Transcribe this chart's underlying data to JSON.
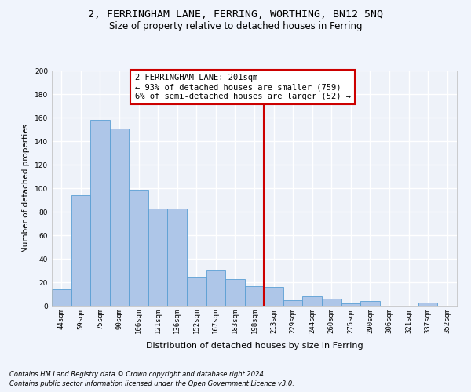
{
  "title": "2, FERRINGHAM LANE, FERRING, WORTHING, BN12 5NQ",
  "subtitle": "Size of property relative to detached houses in Ferring",
  "xlabel": "Distribution of detached houses by size in Ferring",
  "ylabel": "Number of detached properties",
  "bar_color": "#aec6e8",
  "bar_edge_color": "#5a9fd4",
  "categories": [
    "44sqm",
    "59sqm",
    "75sqm",
    "90sqm",
    "106sqm",
    "121sqm",
    "136sqm",
    "152sqm",
    "167sqm",
    "183sqm",
    "198sqm",
    "213sqm",
    "229sqm",
    "244sqm",
    "260sqm",
    "275sqm",
    "290sqm",
    "306sqm",
    "321sqm",
    "337sqm",
    "352sqm"
  ],
  "values": [
    14,
    94,
    158,
    151,
    99,
    83,
    83,
    25,
    30,
    23,
    17,
    16,
    5,
    8,
    6,
    2,
    4,
    0,
    0,
    3,
    0
  ],
  "vline_x": 10.5,
  "annotation_text": "2 FERRINGHAM LANE: 201sqm\n← 93% of detached houses are smaller (759)\n6% of semi-detached houses are larger (52) →",
  "annotation_box_color": "#ffffff",
  "annotation_box_edge": "#cc0000",
  "vline_color": "#cc0000",
  "ylim": [
    0,
    200
  ],
  "yticks": [
    0,
    20,
    40,
    60,
    80,
    100,
    120,
    140,
    160,
    180,
    200
  ],
  "footer1": "Contains HM Land Registry data © Crown copyright and database right 2024.",
  "footer2": "Contains public sector information licensed under the Open Government Licence v3.0.",
  "bg_color": "#eef2f9",
  "grid_color": "#ffffff",
  "title_fontsize": 9.5,
  "subtitle_fontsize": 8.5,
  "annotation_fontsize": 7.5,
  "tick_fontsize": 6.5,
  "ylabel_fontsize": 7.5,
  "xlabel_fontsize": 8.0,
  "footer_fontsize": 6.0
}
